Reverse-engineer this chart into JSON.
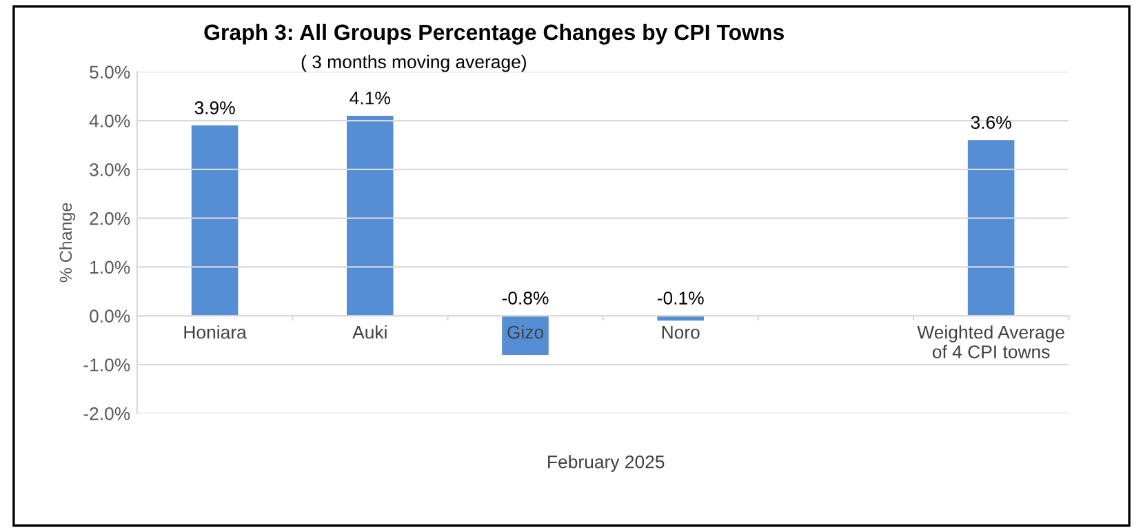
{
  "chart_data": {
    "type": "bar",
    "title": "Graph 3: All Groups Percentage Changes by CPI Towns",
    "subtitle": "( 3 months moving average)",
    "xlabel": "February 2025",
    "ylabel": "% Change",
    "categories": [
      "Honiara",
      "Auki",
      "Gizo",
      "Noro",
      null,
      "Weighted Average\nof 4 CPI towns"
    ],
    "values": [
      3.9,
      4.1,
      -0.8,
      -0.1,
      null,
      3.6
    ],
    "color": "#558ed5",
    "value_labels": [
      "3.9%",
      "4.1%",
      "-0.8%",
      "-0.1%",
      null,
      "3.6%"
    ],
    "ylim": [
      -2,
      5
    ],
    "yticks": [
      {
        "value": -2,
        "label": "-2.0%"
      },
      {
        "value": -1,
        "label": "-1.0%"
      },
      {
        "value": 0,
        "label": "0.0%"
      },
      {
        "value": 1,
        "label": "1.0%"
      },
      {
        "value": 2,
        "label": "2.0%"
      },
      {
        "value": 3,
        "label": "3.0%"
      },
      {
        "value": 4,
        "label": "4.0%"
      },
      {
        "value": 5,
        "label": "5.0%"
      }
    ],
    "grid": "y",
    "legend": false
  }
}
